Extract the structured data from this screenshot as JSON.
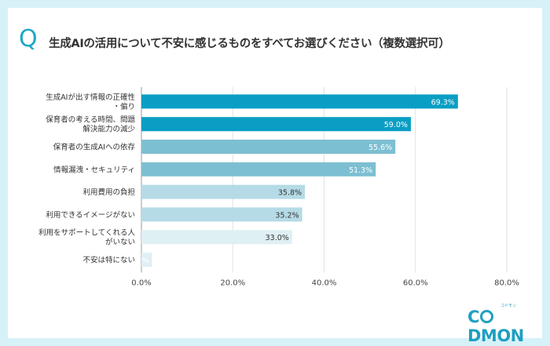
{
  "header": {
    "q_mark": "Q",
    "title": "生成AIの活用について不安に感じるものをすべてお選びください（複数選択可）"
  },
  "logo": {
    "text_prefix": "C",
    "text_suffix": "DMON",
    "small_text": "コドモン"
  },
  "chart_data": {
    "type": "bar",
    "orientation": "horizontal",
    "categories": [
      [
        "生成AIが出す情報の正確性",
        "・偏り"
      ],
      [
        "保育者の考える時間、問題",
        "解決能力の減少"
      ],
      [
        "保育者の生成AIへの依存"
      ],
      [
        "情報漏洩・セキュリティ"
      ],
      [
        "利用費用の負担"
      ],
      [
        "利用できるイメージがない"
      ],
      [
        "利用をサポートしてくれる人",
        "がいない"
      ],
      [
        "不安は特にない"
      ]
    ],
    "values": [
      69.3,
      59.0,
      55.6,
      51.3,
      35.8,
      35.2,
      33.0,
      2.3
    ],
    "value_labels": [
      "69.3%",
      "59.0%",
      "55.6%",
      "51.3%",
      "35.8%",
      "35.2%",
      "33.0%",
      "2.3%"
    ],
    "bar_colors": [
      "#0a9ec4",
      "#0a9ec4",
      "#7dbfd2",
      "#7dbfd2",
      "#b5dbe6",
      "#b5dbe6",
      "#dff0f4",
      "#dff0f4"
    ],
    "label_colors": [
      "#ffffff",
      "#ffffff",
      "#ffffff",
      "#ffffff",
      "#333333",
      "#333333",
      "#333333",
      "#ffffff"
    ],
    "xlim": [
      0,
      80
    ],
    "x_ticks": [
      "0.0%",
      "20.0%",
      "40.0%",
      "60.0%",
      "80.0%"
    ],
    "xlabel": "",
    "ylabel": "",
    "grid": true
  }
}
